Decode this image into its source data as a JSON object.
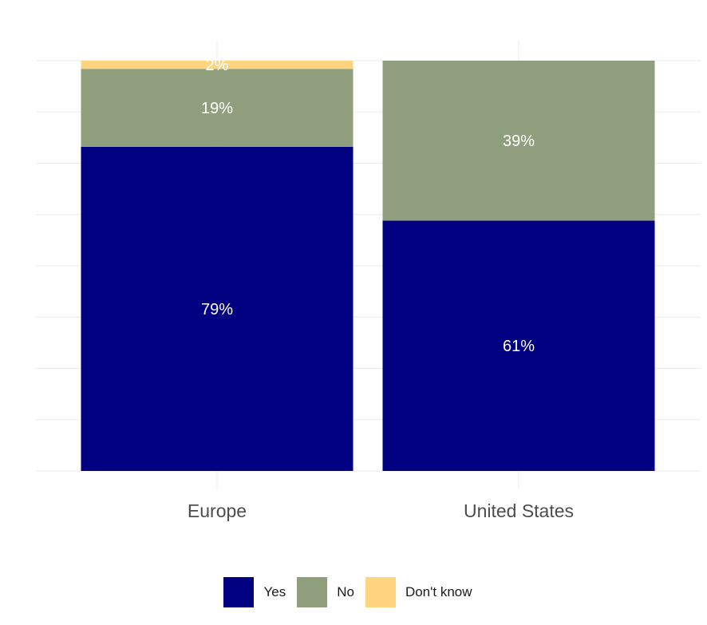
{
  "chart_data": {
    "type": "bar",
    "stacked": true,
    "orientation": "vertical",
    "categories": [
      "Europe",
      "United States"
    ],
    "series": [
      {
        "name": "Yes",
        "color": "#000080",
        "values": [
          79,
          61
        ],
        "labels": [
          "79%",
          "61%"
        ]
      },
      {
        "name": "No",
        "color": "#8F9E7C",
        "values": [
          19,
          39
        ],
        "labels": [
          "19%",
          "39%"
        ]
      },
      {
        "name": "Don't know",
        "color": "#FED47F",
        "values": [
          2,
          0
        ],
        "labels": [
          "2%",
          ""
        ]
      }
    ],
    "ylim": [
      0,
      100
    ],
    "grid": true,
    "y_tick_labels_shown": false,
    "legend_position": "bottom"
  }
}
